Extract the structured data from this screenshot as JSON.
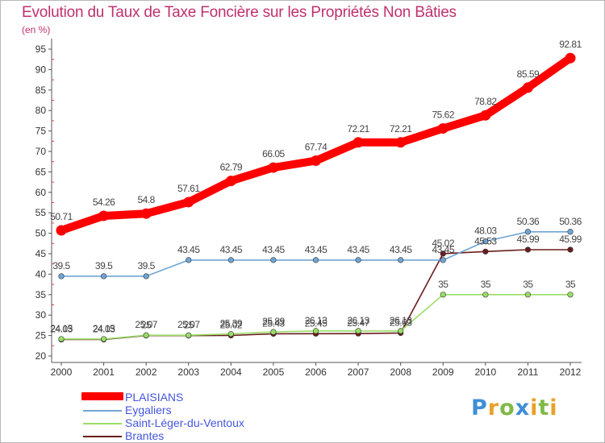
{
  "title": "Evolution du Taux de Taxe Foncière sur les Propriétés Non Bâties",
  "unit": "(en %)",
  "logo": {
    "text": "Proxiti",
    "letters": [
      {
        "ch": "P",
        "color": "#3f8fd6"
      },
      {
        "ch": "r",
        "color": "#e8a22a"
      },
      {
        "ch": "o",
        "color": "#7fb947"
      },
      {
        "ch": "x",
        "color": "#3f8fd6"
      },
      {
        "ch": "i",
        "color": "#e8a22a"
      },
      {
        "ch": "t",
        "color": "#7fb947"
      },
      {
        "ch": "i",
        "color": "#e8a22a"
      }
    ]
  },
  "chart_data": {
    "type": "line",
    "title": "Evolution du Taux de Taxe Foncière sur les Propriétés Non Bâties",
    "ylabel": "(en %)",
    "ylim": [
      20,
      95
    ],
    "yticks": [
      20,
      25,
      30,
      35,
      40,
      45,
      50,
      55,
      60,
      65,
      70,
      75,
      80,
      85,
      90,
      95
    ],
    "categories": [
      "2000",
      "2001",
      "2002",
      "2003",
      "2004",
      "2005",
      "2006",
      "2007",
      "2008",
      "2009",
      "2010",
      "2011",
      "2012"
    ],
    "grid": false,
    "legend": "bottom-left",
    "series": [
      {
        "name": "PLAISIANS",
        "color": "#ff0000",
        "values": [
          50.71,
          54.26,
          54.8,
          57.61,
          62.79,
          66.05,
          67.74,
          72.21,
          72.21,
          75.62,
          78.82,
          85.59,
          92.81
        ],
        "labels": [
          "50.71",
          "54.26",
          "54.8",
          "57.61",
          "62.79",
          "66.05",
          "67.74",
          "72.21",
          "72.21",
          "75.62",
          "78.82",
          "85.59",
          "92.81"
        ]
      },
      {
        "name": "Eygaliers",
        "color": "#6fa5d4",
        "values": [
          39.5,
          39.5,
          39.5,
          43.45,
          43.45,
          43.45,
          43.45,
          43.45,
          43.45,
          43.45,
          48.03,
          50.36,
          50.36
        ],
        "labels": [
          "39.5",
          "39.5",
          "39.5",
          "43.45",
          "43.45",
          "43.45",
          "43.45",
          "43.45",
          "43.45",
          "43.45",
          "48.03",
          "50.36",
          "50.36"
        ]
      },
      {
        "name": "Saint-Léger-du-Ventoux",
        "color": "#99dd66",
        "values": [
          24.15,
          24.15,
          25.07,
          25.07,
          25.39,
          25.89,
          26.13,
          26.13,
          26.13,
          35,
          35,
          35,
          35
        ],
        "labels": [
          "24.15",
          "24.15",
          "25.07",
          "25.07",
          "25.39",
          "25.89",
          "26.13",
          "26.13",
          "26.13",
          "35",
          "35",
          "35",
          "35"
        ]
      },
      {
        "name": "Brantes",
        "color": "#6b1c1c",
        "values": [
          24.03,
          24.03,
          25,
          25,
          25.02,
          25.43,
          25.45,
          25.47,
          25.63,
          45.02,
          45.53,
          45.99,
          45.99
        ],
        "labels": [
          "24.03",
          "24.03",
          "25",
          "25",
          "25.02",
          "25.43",
          "25.45",
          "25.47",
          "25.63",
          "45.02",
          "45.53",
          "45.99",
          "45.99"
        ]
      }
    ]
  }
}
